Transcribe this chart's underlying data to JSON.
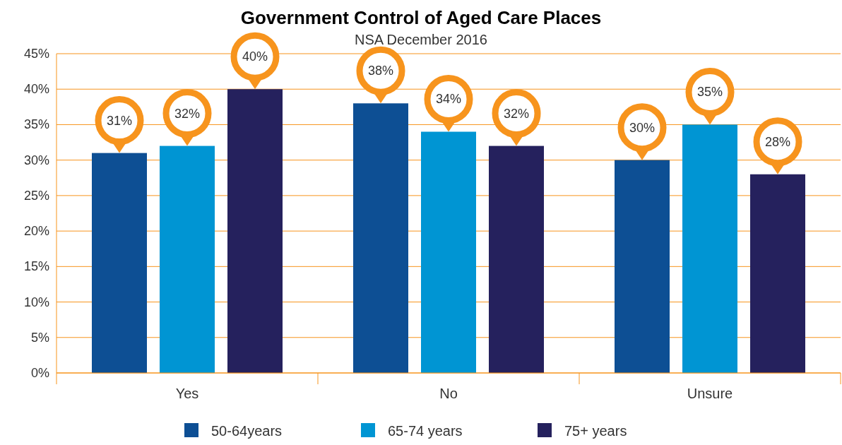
{
  "chart_data": {
    "type": "bar",
    "title": "Government Control of Aged Care Places",
    "subtitle": "NSA December 2016",
    "categories": [
      "Yes",
      "No",
      "Unsure"
    ],
    "series": [
      {
        "name": "50-64years",
        "color": "#0d4f94",
        "values": [
          31,
          38,
          30
        ],
        "value_labels": [
          "31%",
          "38%",
          "30%"
        ]
      },
      {
        "name": "65-74 years",
        "color": "#0095d3",
        "values": [
          32,
          34,
          35
        ],
        "value_labels": [
          "32%",
          "34%",
          "35%"
        ]
      },
      {
        "name": "75+ years",
        "color": "#25215d",
        "values": [
          40,
          32,
          28
        ],
        "value_labels": [
          "40%",
          "32%",
          "28%"
        ]
      }
    ],
    "ylim": [
      0,
      45
    ],
    "yticks": [
      {
        "value": 0,
        "label": "0%"
      },
      {
        "value": 5,
        "label": "5%"
      },
      {
        "value": 10,
        "label": "10%"
      },
      {
        "value": 15,
        "label": "15%"
      },
      {
        "value": 20,
        "label": "20%"
      },
      {
        "value": 25,
        "label": "25%"
      },
      {
        "value": 30,
        "label": "30%"
      },
      {
        "value": 35,
        "label": "35%"
      },
      {
        "value": 40,
        "label": "40%"
      },
      {
        "value": 45,
        "label": "45%"
      }
    ],
    "grid": "y",
    "legend": "bottom"
  }
}
